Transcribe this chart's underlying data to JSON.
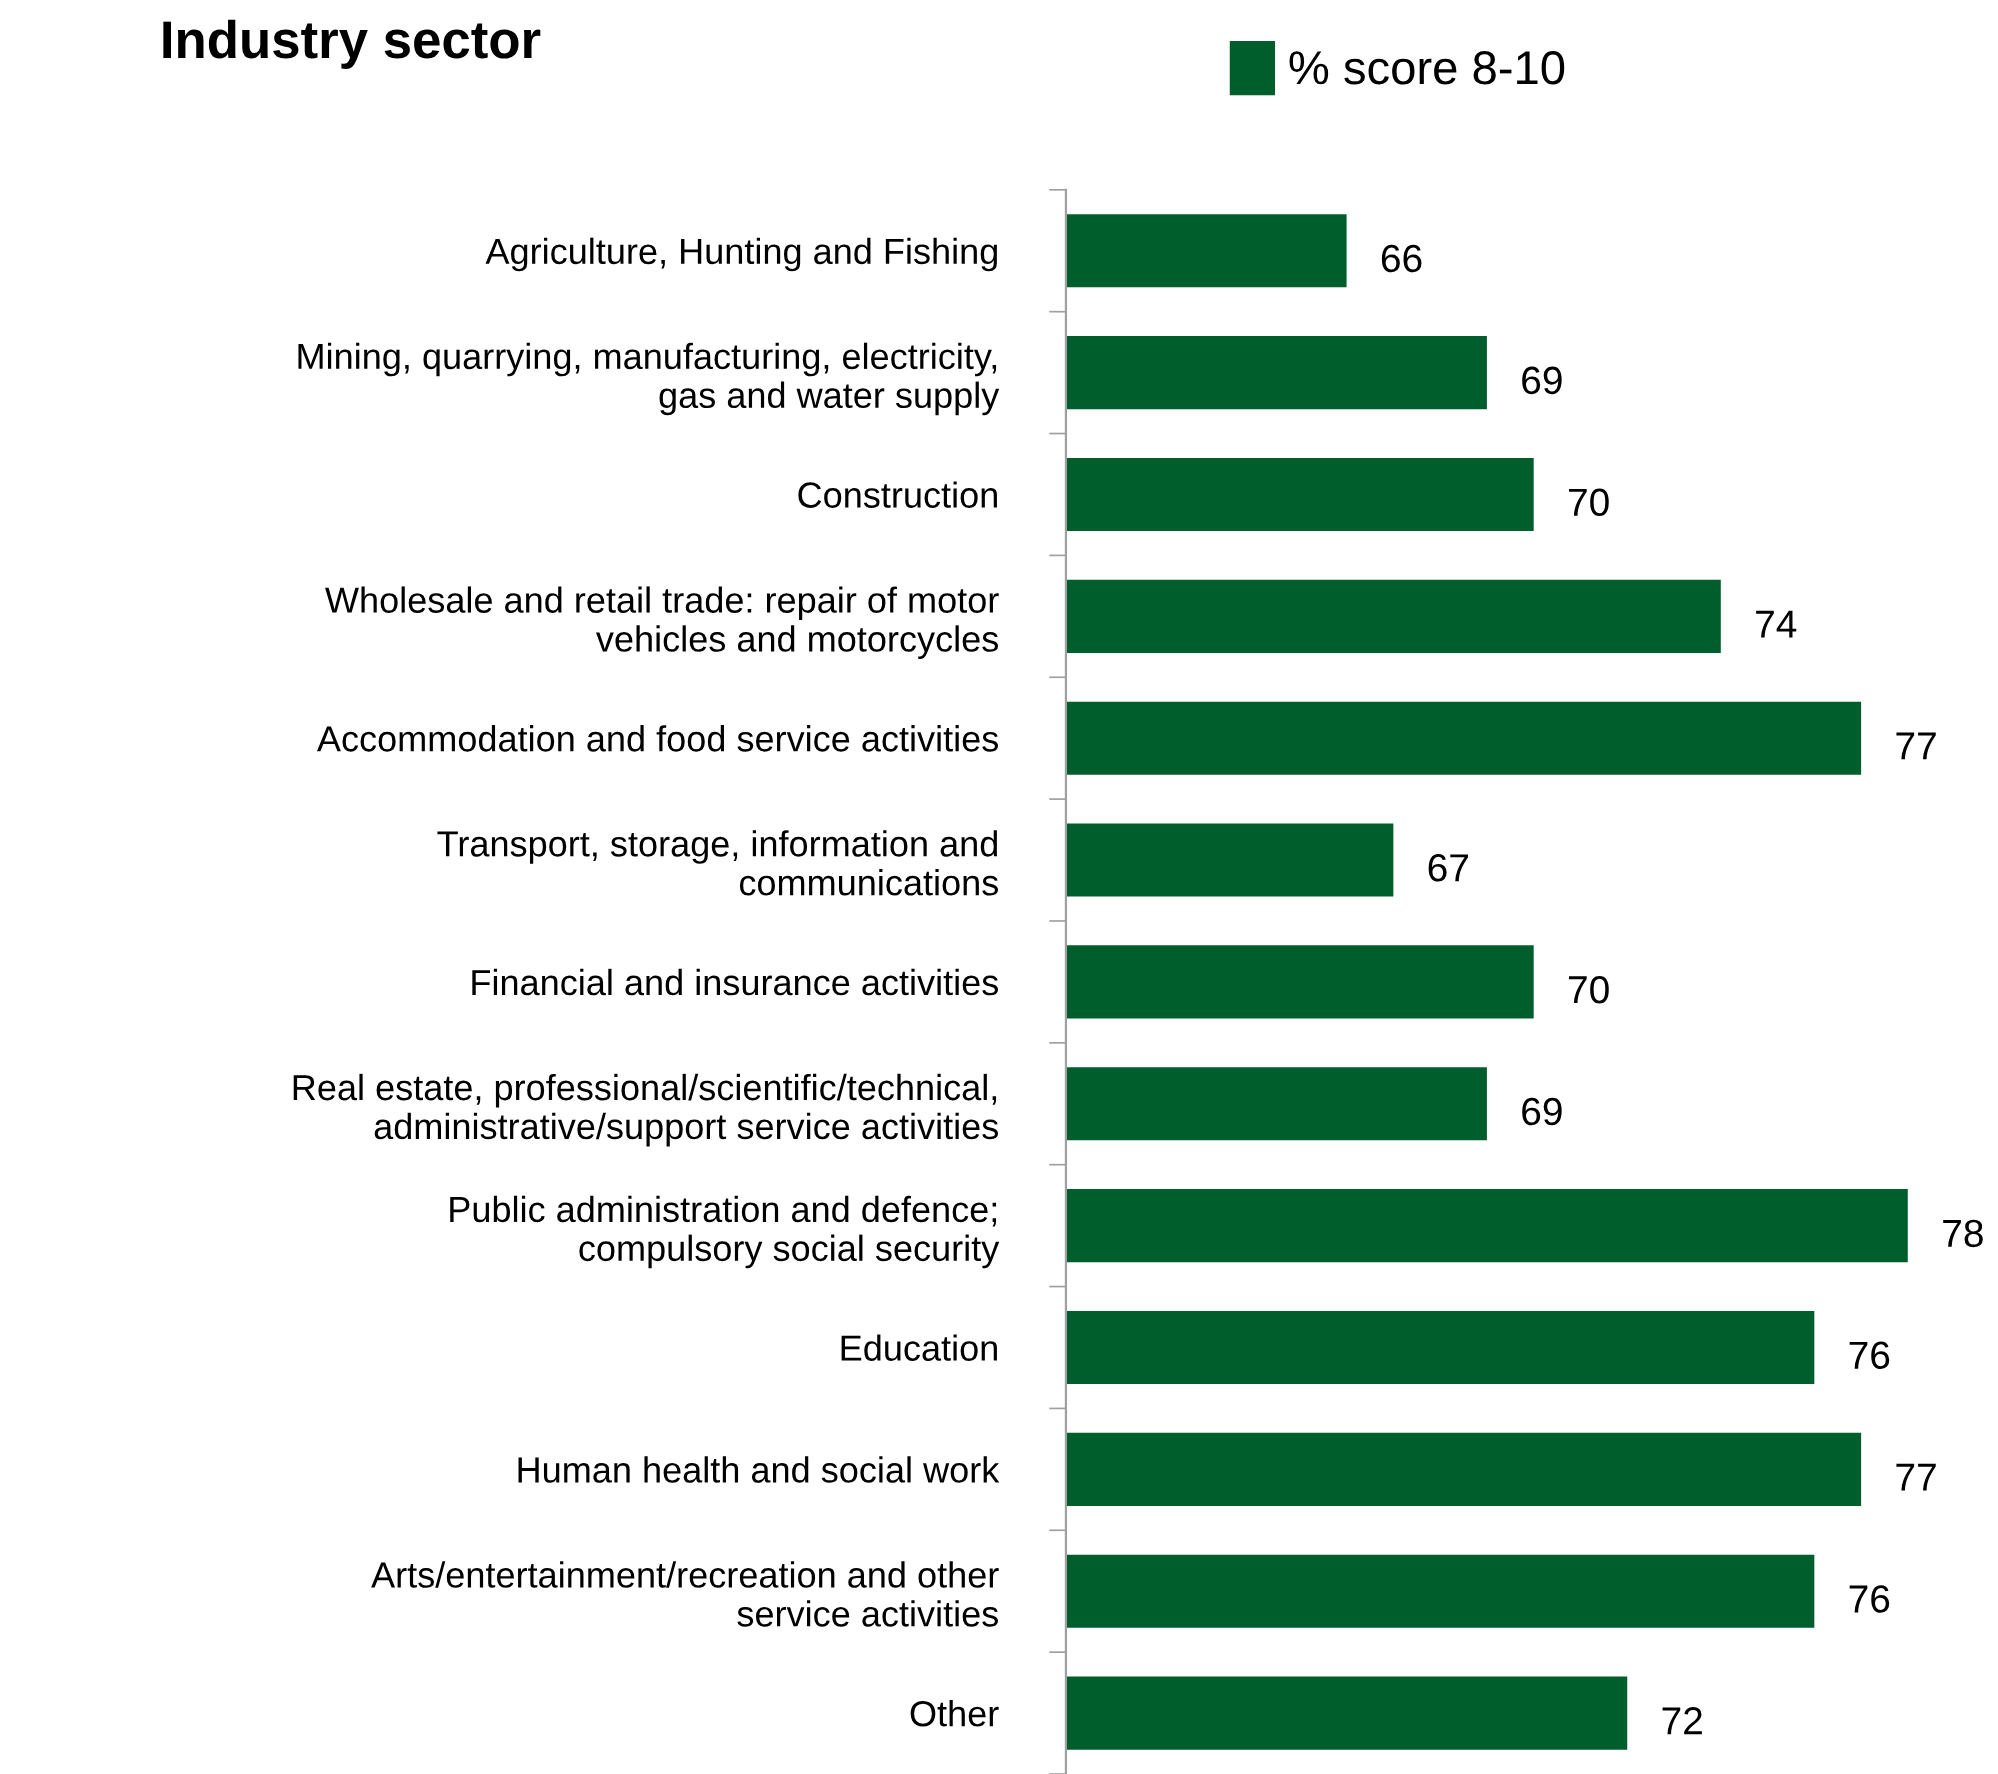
{
  "chart_data": {
    "type": "bar",
    "orientation": "horizontal",
    "title": "Industry sector",
    "categories": [
      "Agriculture, Hunting and Fishing",
      "Mining, quarrying, manufacturing, electricity,\ngas and water supply",
      "Construction",
      "Wholesale and retail trade: repair of motor\nvehicles and motorcycles",
      "Accommodation and food service activities",
      "Transport, storage, information and\ncommunications",
      "Financial and insurance activities",
      "Real estate, professional/scientific/technical,\nadministrative/support service activities",
      "Public administration and defence;\ncompulsory social security",
      "Education",
      "Human health and social work",
      "Arts/entertainment/recreation and other\nservice activities",
      "Other"
    ],
    "series": [
      {
        "name": "% score 8-10",
        "color": "#005e2c",
        "values": [
          66,
          69,
          70,
          74,
          77,
          67,
          70,
          69,
          78,
          76,
          77,
          76,
          72
        ]
      }
    ],
    "xlim": [
      60,
      78
    ],
    "data_labels": true,
    "legend": "top",
    "grid": false
  }
}
